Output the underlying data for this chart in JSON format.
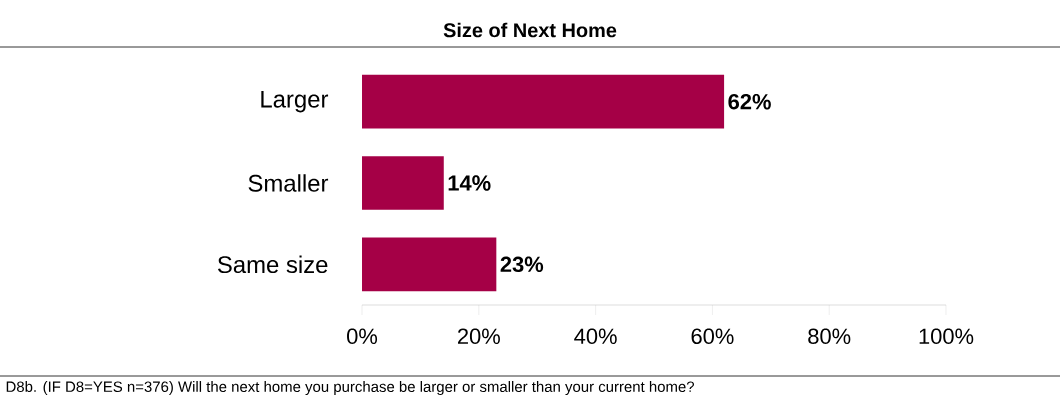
{
  "chart_data": {
    "type": "bar",
    "orientation": "horizontal",
    "title": "Size of Next Home",
    "categories": [
      "Larger",
      "Smaller",
      "Same size"
    ],
    "values": [
      62,
      14,
      23
    ],
    "value_labels": [
      "62%",
      "14%",
      "23%"
    ],
    "color": "#a50046",
    "xlim": [
      0,
      100
    ],
    "xticks": [
      {
        "value": 0,
        "label": "0%"
      },
      {
        "value": 20,
        "label": "20%"
      },
      {
        "value": 40,
        "label": "40%"
      },
      {
        "value": 60,
        "label": "60%"
      },
      {
        "value": 80,
        "label": "80%"
      },
      {
        "value": 100,
        "label": "100%"
      }
    ],
    "annotations": [
      "D8b. (IF D8=YES n=376) Will the next home you purchase be larger or smaller than your current home?"
    ]
  }
}
